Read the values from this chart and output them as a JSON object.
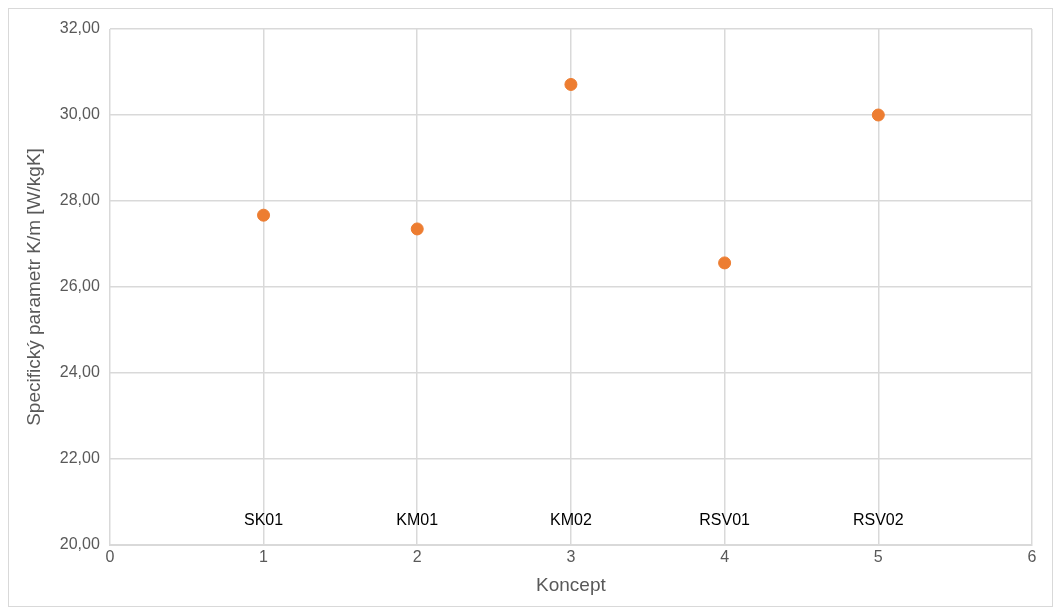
{
  "chart_data": {
    "type": "scatter",
    "xlabel": "Koncept",
    "ylabel": "Specifický parametr K/m [W/kgK]",
    "x": [
      1,
      2,
      3,
      4,
      5
    ],
    "series": [
      {
        "color": "#ed7d31",
        "values": [
          27.67,
          27.35,
          30.71,
          26.56,
          30.0
        ]
      }
    ],
    "xlim": [
      0,
      6
    ],
    "xticks": [
      0,
      1,
      2,
      3,
      4,
      5,
      6
    ],
    "ylim": [
      20,
      32
    ],
    "yticks": [
      {
        "value": 20,
        "label": "20,00"
      },
      {
        "value": 22,
        "label": "22,00"
      },
      {
        "value": 24,
        "label": "24,00"
      },
      {
        "value": 26,
        "label": "26,00"
      },
      {
        "value": 28,
        "label": "28,00"
      },
      {
        "value": 30,
        "label": "30,00"
      },
      {
        "value": 32,
        "label": "32,00"
      }
    ],
    "grid": true,
    "legend": false,
    "marker": "circle",
    "annotations": [
      "SK01",
      "KM01",
      "KM02",
      "RSV01",
      "RSV02"
    ]
  }
}
